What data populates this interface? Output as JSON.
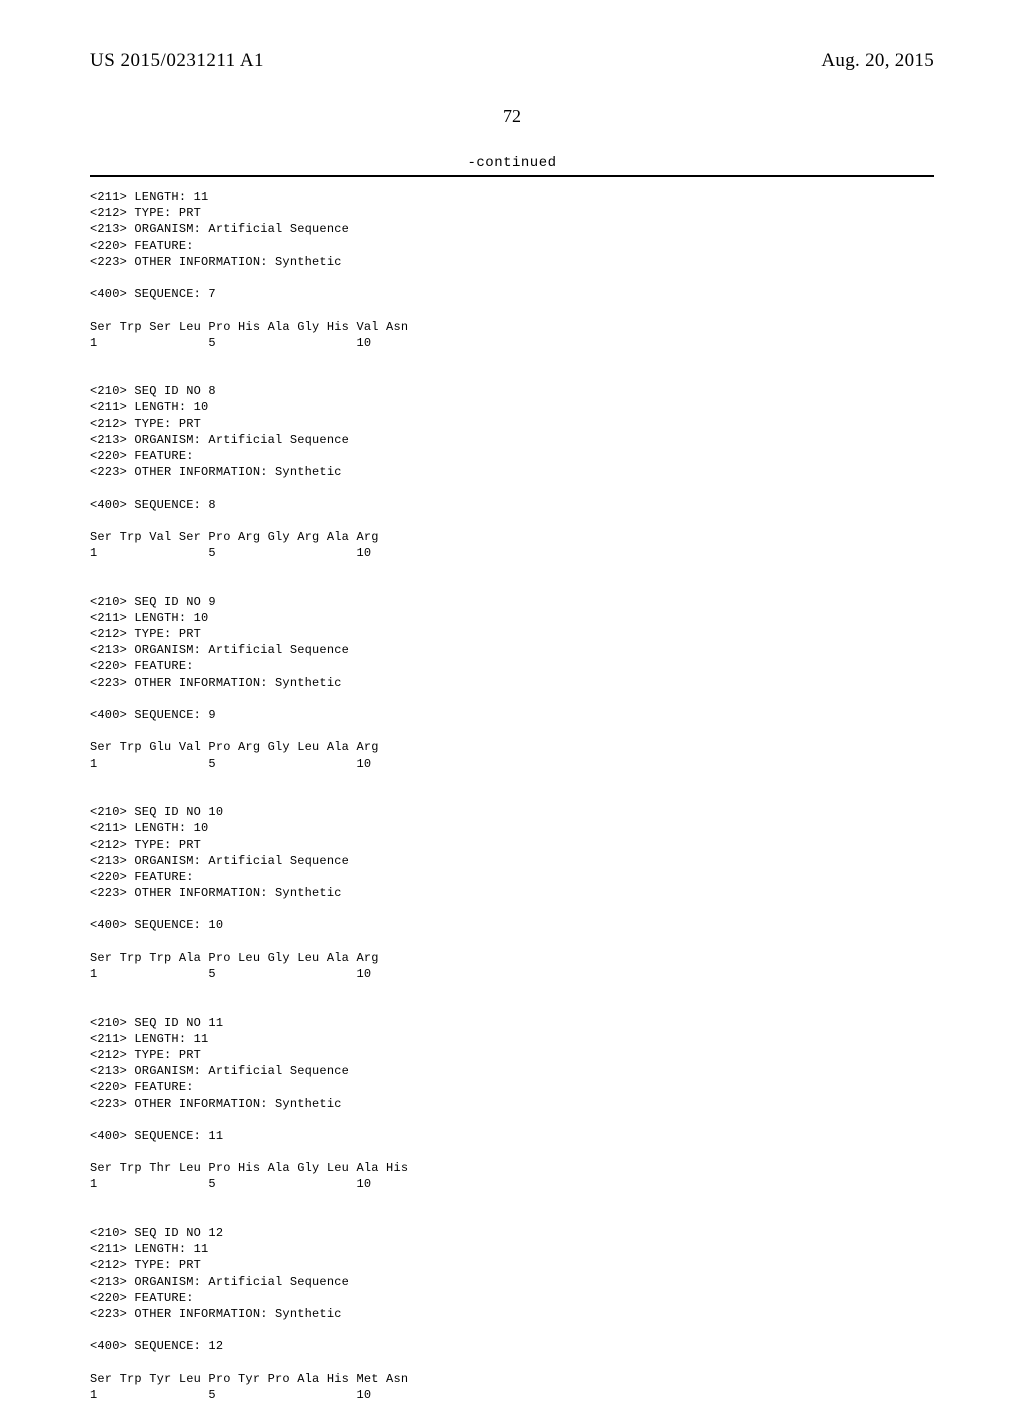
{
  "header": {
    "publication_number": "US 2015/0231211 A1",
    "date": "Aug. 20, 2015"
  },
  "page_number": "72",
  "continued_label": "-continued",
  "sequences": [
    {
      "pre_lines": [
        "<211> LENGTH: 11",
        "<212> TYPE: PRT",
        "<213> ORGANISM: Artificial Sequence",
        "<220> FEATURE:",
        "<223> OTHER INFORMATION: Synthetic"
      ],
      "seq_line": "<400> SEQUENCE: 7",
      "residues": "Ser Trp Ser Leu Pro His Ala Gly His Val Asn",
      "numbers": "1               5                   10"
    },
    {
      "pre_lines": [
        "<210> SEQ ID NO 8",
        "<211> LENGTH: 10",
        "<212> TYPE: PRT",
        "<213> ORGANISM: Artificial Sequence",
        "<220> FEATURE:",
        "<223> OTHER INFORMATION: Synthetic"
      ],
      "seq_line": "<400> SEQUENCE: 8",
      "residues": "Ser Trp Val Ser Pro Arg Gly Arg Ala Arg",
      "numbers": "1               5                   10"
    },
    {
      "pre_lines": [
        "<210> SEQ ID NO 9",
        "<211> LENGTH: 10",
        "<212> TYPE: PRT",
        "<213> ORGANISM: Artificial Sequence",
        "<220> FEATURE:",
        "<223> OTHER INFORMATION: Synthetic"
      ],
      "seq_line": "<400> SEQUENCE: 9",
      "residues": "Ser Trp Glu Val Pro Arg Gly Leu Ala Arg",
      "numbers": "1               5                   10"
    },
    {
      "pre_lines": [
        "<210> SEQ ID NO 10",
        "<211> LENGTH: 10",
        "<212> TYPE: PRT",
        "<213> ORGANISM: Artificial Sequence",
        "<220> FEATURE:",
        "<223> OTHER INFORMATION: Synthetic"
      ],
      "seq_line": "<400> SEQUENCE: 10",
      "residues": "Ser Trp Trp Ala Pro Leu Gly Leu Ala Arg",
      "numbers": "1               5                   10"
    },
    {
      "pre_lines": [
        "<210> SEQ ID NO 11",
        "<211> LENGTH: 11",
        "<212> TYPE: PRT",
        "<213> ORGANISM: Artificial Sequence",
        "<220> FEATURE:",
        "<223> OTHER INFORMATION: Synthetic"
      ],
      "seq_line": "<400> SEQUENCE: 11",
      "residues": "Ser Trp Thr Leu Pro His Ala Gly Leu Ala His",
      "numbers": "1               5                   10"
    },
    {
      "pre_lines": [
        "<210> SEQ ID NO 12",
        "<211> LENGTH: 11",
        "<212> TYPE: PRT",
        "<213> ORGANISM: Artificial Sequence",
        "<220> FEATURE:",
        "<223> OTHER INFORMATION: Synthetic"
      ],
      "seq_line": "<400> SEQUENCE: 12",
      "residues": "Ser Trp Tyr Leu Pro Tyr Pro Ala His Met Asn",
      "numbers": "1               5                   10"
    }
  ]
}
